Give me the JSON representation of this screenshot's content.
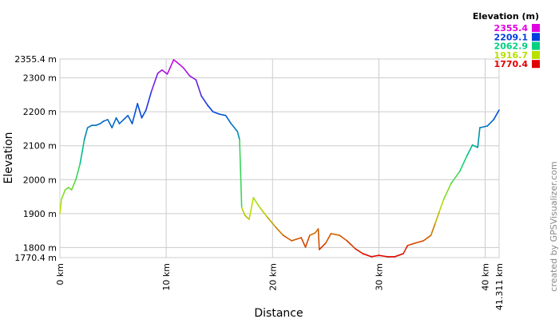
{
  "chart_data": {
    "type": "line",
    "x_label": "Distance",
    "y_label": "Elevation",
    "legend_title": "Elevation (m)",
    "legend": [
      {
        "value": 2355.4,
        "color": "#e000e0"
      },
      {
        "value": 2209.1,
        "color": "#0040e0"
      },
      {
        "value": 2062.9,
        "color": "#00d080"
      },
      {
        "value": 1916.7,
        "color": "#b8e000"
      },
      {
        "value": 1770.4,
        "color": "#e00000"
      }
    ],
    "credit": "created by GPSVisualizer.com",
    "xlim": [
      0,
      41.311
    ],
    "ylim": [
      1770.4,
      2355.4
    ],
    "xticks": [
      {
        "value": 0,
        "label": "0 km"
      },
      {
        "value": 10,
        "label": "10 km"
      },
      {
        "value": 20,
        "label": "20 km"
      },
      {
        "value": 30,
        "label": "30 km"
      },
      {
        "value": 40,
        "label": "40 km"
      },
      {
        "value": 41.311,
        "label": "41.311 km"
      }
    ],
    "yticks": [
      {
        "value": 1770.4,
        "label": "1770.4 m"
      },
      {
        "value": 1800,
        "label": "1800 m"
      },
      {
        "value": 1900,
        "label": "1900 m"
      },
      {
        "value": 2000,
        "label": "2000 m"
      },
      {
        "value": 2100,
        "label": "2100 m"
      },
      {
        "value": 2200,
        "label": "2200 m"
      },
      {
        "value": 2300,
        "label": "2300 m"
      },
      {
        "value": 2355.4,
        "label": "2355.4 m"
      }
    ],
    "grid": true,
    "x": [
      0,
      0.15,
      0.5,
      0.8,
      1.1,
      1.5,
      1.9,
      2.3,
      2.6,
      3.0,
      3.4,
      3.8,
      4.1,
      4.5,
      4.9,
      5.3,
      5.6,
      6.0,
      6.4,
      6.8,
      7.3,
      7.7,
      8.1,
      8.6,
      9.2,
      9.6,
      10.1,
      10.7,
      11.0,
      11.6,
      12.2,
      12.8,
      13.3,
      13.9,
      14.4,
      15.0,
      15.6,
      16.1,
      16.7,
      16.9,
      17.1,
      17.4,
      17.8,
      18.2,
      18.8,
      19.5,
      20.3,
      21.0,
      21.8,
      22.3,
      22.7,
      23.1,
      23.5,
      24.0,
      24.3,
      24.4,
      25.0,
      25.5,
      26.3,
      27.0,
      27.8,
      28.5,
      29.3,
      30.0,
      30.8,
      31.5,
      32.3,
      32.7,
      33.4,
      34.2,
      34.9,
      35.3,
      35.7,
      36.1,
      36.8,
      37.6,
      38.3,
      38.8,
      39.3,
      39.5,
      40.2,
      40.8,
      41.311
    ],
    "values": [
      1900,
      1942,
      1970,
      1977,
      1970,
      2000,
      2047,
      2118,
      2153,
      2160,
      2160,
      2165,
      2172,
      2177,
      2153,
      2182,
      2165,
      2177,
      2189,
      2165,
      2224,
      2182,
      2205,
      2259,
      2313,
      2323,
      2311,
      2353,
      2346,
      2330,
      2306,
      2294,
      2247,
      2219,
      2200,
      2193,
      2189,
      2165,
      2142,
      2118,
      1918,
      1895,
      1883,
      1947,
      1918,
      1890,
      1860,
      1836,
      1820,
      1825,
      1829,
      1801,
      1836,
      1843,
      1855,
      1794,
      1813,
      1841,
      1836,
      1820,
      1796,
      1782,
      1773,
      1777,
      1773,
      1773,
      1782,
      1806,
      1813,
      1820,
      1836,
      1871,
      1907,
      1942,
      1989,
      2024,
      2071,
      2102,
      2095,
      2153,
      2158,
      2177,
      2205
    ]
  }
}
